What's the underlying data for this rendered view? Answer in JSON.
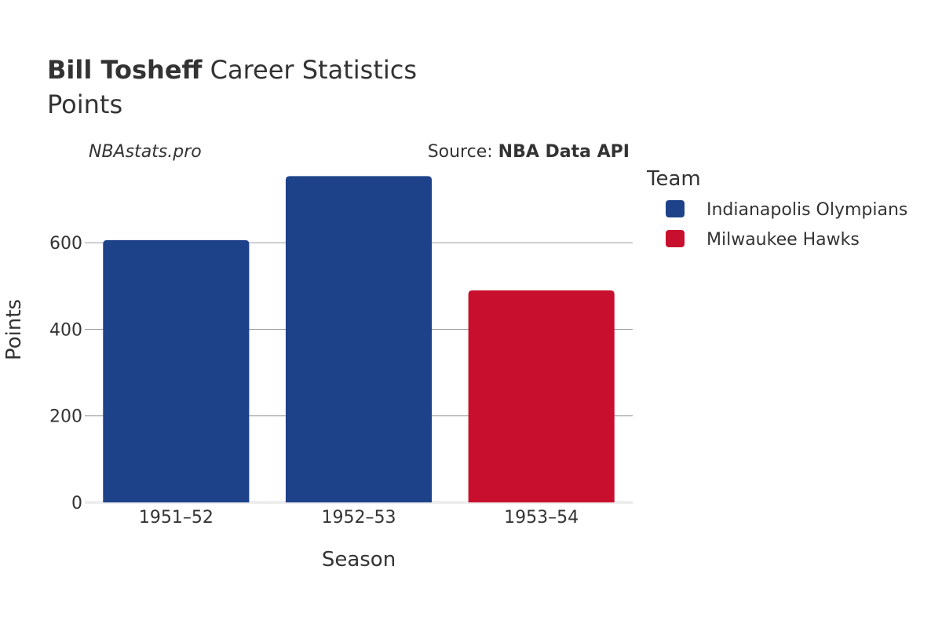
{
  "header": {
    "title_bold": "Bill Tosheff",
    "title_rest": " Career Statistics",
    "subtitle": "Points"
  },
  "watermark": "NBAstats.pro",
  "source": {
    "prefix": "Source: ",
    "name": "NBA Data API"
  },
  "legend_title": "Team",
  "colors": {
    "Indianapolis Olympians": "#1d428a",
    "Milwaukee Hawks": "#c8102e",
    "grid": "#999999",
    "axis_line": "#eeeeee"
  },
  "chart_data": {
    "type": "bar",
    "xlabel": "Season",
    "ylabel": "Points",
    "ylim": [
      0,
      780
    ],
    "yticks": [
      0,
      200,
      400,
      600
    ],
    "categories": [
      "1951–52",
      "1952–53",
      "1953–54"
    ],
    "values": [
      606,
      754,
      490
    ],
    "teams": [
      "Indianapolis Olympians",
      "Indianapolis Olympians",
      "Milwaukee Hawks"
    ],
    "legend": [
      "Indianapolis Olympians",
      "Milwaukee Hawks"
    ],
    "legend_position": "right",
    "grid": true
  }
}
